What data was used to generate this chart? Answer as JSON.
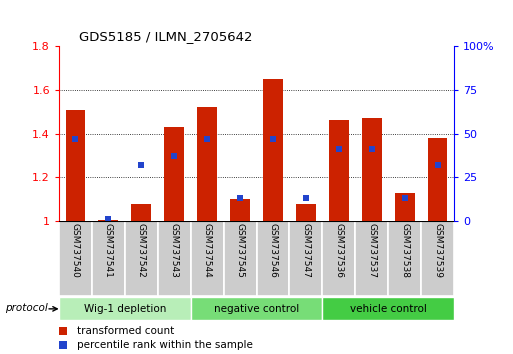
{
  "title": "GDS5185 / ILMN_2705642",
  "samples": [
    "GSM737540",
    "GSM737541",
    "GSM737542",
    "GSM737543",
    "GSM737544",
    "GSM737545",
    "GSM737546",
    "GSM737547",
    "GSM737536",
    "GSM737537",
    "GSM737538",
    "GSM737539"
  ],
  "red_values": [
    1.51,
    1.005,
    1.08,
    1.43,
    1.52,
    1.1,
    1.65,
    1.08,
    1.46,
    1.47,
    1.13,
    1.38
  ],
  "blue_pct": [
    47,
    1,
    32,
    37,
    47,
    13,
    47,
    13,
    41,
    41,
    13,
    32
  ],
  "ylim_left": [
    1.0,
    1.8
  ],
  "ylim_right": [
    0,
    100
  ],
  "yticks_left": [
    1.0,
    1.2,
    1.4,
    1.6,
    1.8
  ],
  "ytick_labels_left": [
    "1",
    "1.2",
    "1.4",
    "1.6",
    "1.8"
  ],
  "yticks_right": [
    0,
    25,
    50,
    75,
    100
  ],
  "ytick_labels_right": [
    "0",
    "25",
    "50",
    "75",
    "100%"
  ],
  "gridlines": [
    1.2,
    1.4,
    1.6
  ],
  "groups": [
    {
      "label": "Wig-1 depletion",
      "start": 0,
      "end": 3,
      "color": "#b8eeb8"
    },
    {
      "label": "negative control",
      "start": 4,
      "end": 7,
      "color": "#77dd77"
    },
    {
      "label": "vehicle control",
      "start": 8,
      "end": 11,
      "color": "#44cc44"
    }
  ],
  "protocol_label": "protocol",
  "red_color": "#cc2200",
  "blue_color": "#2244cc",
  "bar_width": 0.6,
  "legend_red": "transformed count",
  "legend_blue": "percentile rank within the sample",
  "sample_bg": "#cccccc",
  "plot_bg": "#ffffff"
}
